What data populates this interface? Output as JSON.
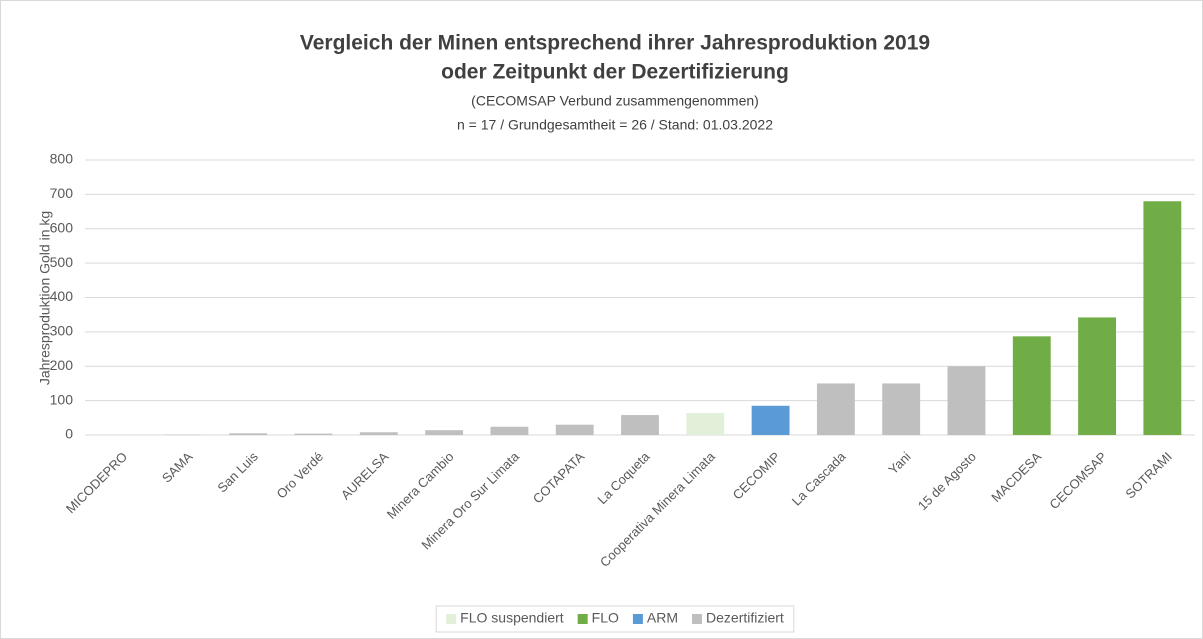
{
  "chart_data": {
    "type": "bar",
    "title": [
      "Vergleich der Minen entsprechend ihrer Jahresproduktion 2019",
      "oder Zeitpunkt der Dezertifizierung"
    ],
    "subtitle": [
      "(CECOMSAP Verbund zusammengenommen)",
      "n = 17 / Grundgesamtheit = 26 / Stand: 01.03.2022"
    ],
    "y_label": "Jahresproduktion  Gold in kg",
    "categories": [
      "MICODEPRO",
      "SAMA",
      "San Luis",
      "Oro Verdé",
      "AURELSA",
      "Minera Cambio",
      "Minera Oro Sur Limata",
      "COTAPATA",
      "La Coqueta",
      "Cooperativa Minera Limata",
      "CECOMIP",
      "La Cascada",
      "Yani",
      "15 de Agosto",
      "MACDESA",
      "CECOMSAP",
      "SOTRAMI"
    ],
    "series": [
      {
        "name": "FLO suspendiert",
        "color": "#e2f0d9",
        "values": [
          null,
          null,
          null,
          null,
          null,
          null,
          null,
          null,
          null,
          64,
          null,
          null,
          null,
          null,
          null,
          null,
          null
        ]
      },
      {
        "name": "FLO",
        "color": "#70ad47",
        "values": [
          null,
          null,
          null,
          null,
          null,
          null,
          null,
          null,
          null,
          null,
          null,
          null,
          null,
          null,
          287,
          342,
          680
        ]
      },
      {
        "name": "ARM",
        "color": "#5b9bd5",
        "values": [
          null,
          null,
          null,
          null,
          null,
          null,
          null,
          null,
          null,
          null,
          85,
          null,
          null,
          null,
          null,
          null,
          null
        ]
      },
      {
        "name": "Dezertifiziert",
        "color": "#bfbfbf",
        "values": [
          0,
          1,
          5,
          4,
          8,
          14,
          24,
          30,
          58,
          null,
          null,
          150,
          150,
          200,
          null,
          null,
          null
        ]
      }
    ],
    "ylim": [
      0,
      800
    ],
    "yticks": [
      0,
      100,
      200,
      300,
      400,
      500,
      600,
      700,
      800
    ],
    "grid": true,
    "legend": "bottom"
  }
}
